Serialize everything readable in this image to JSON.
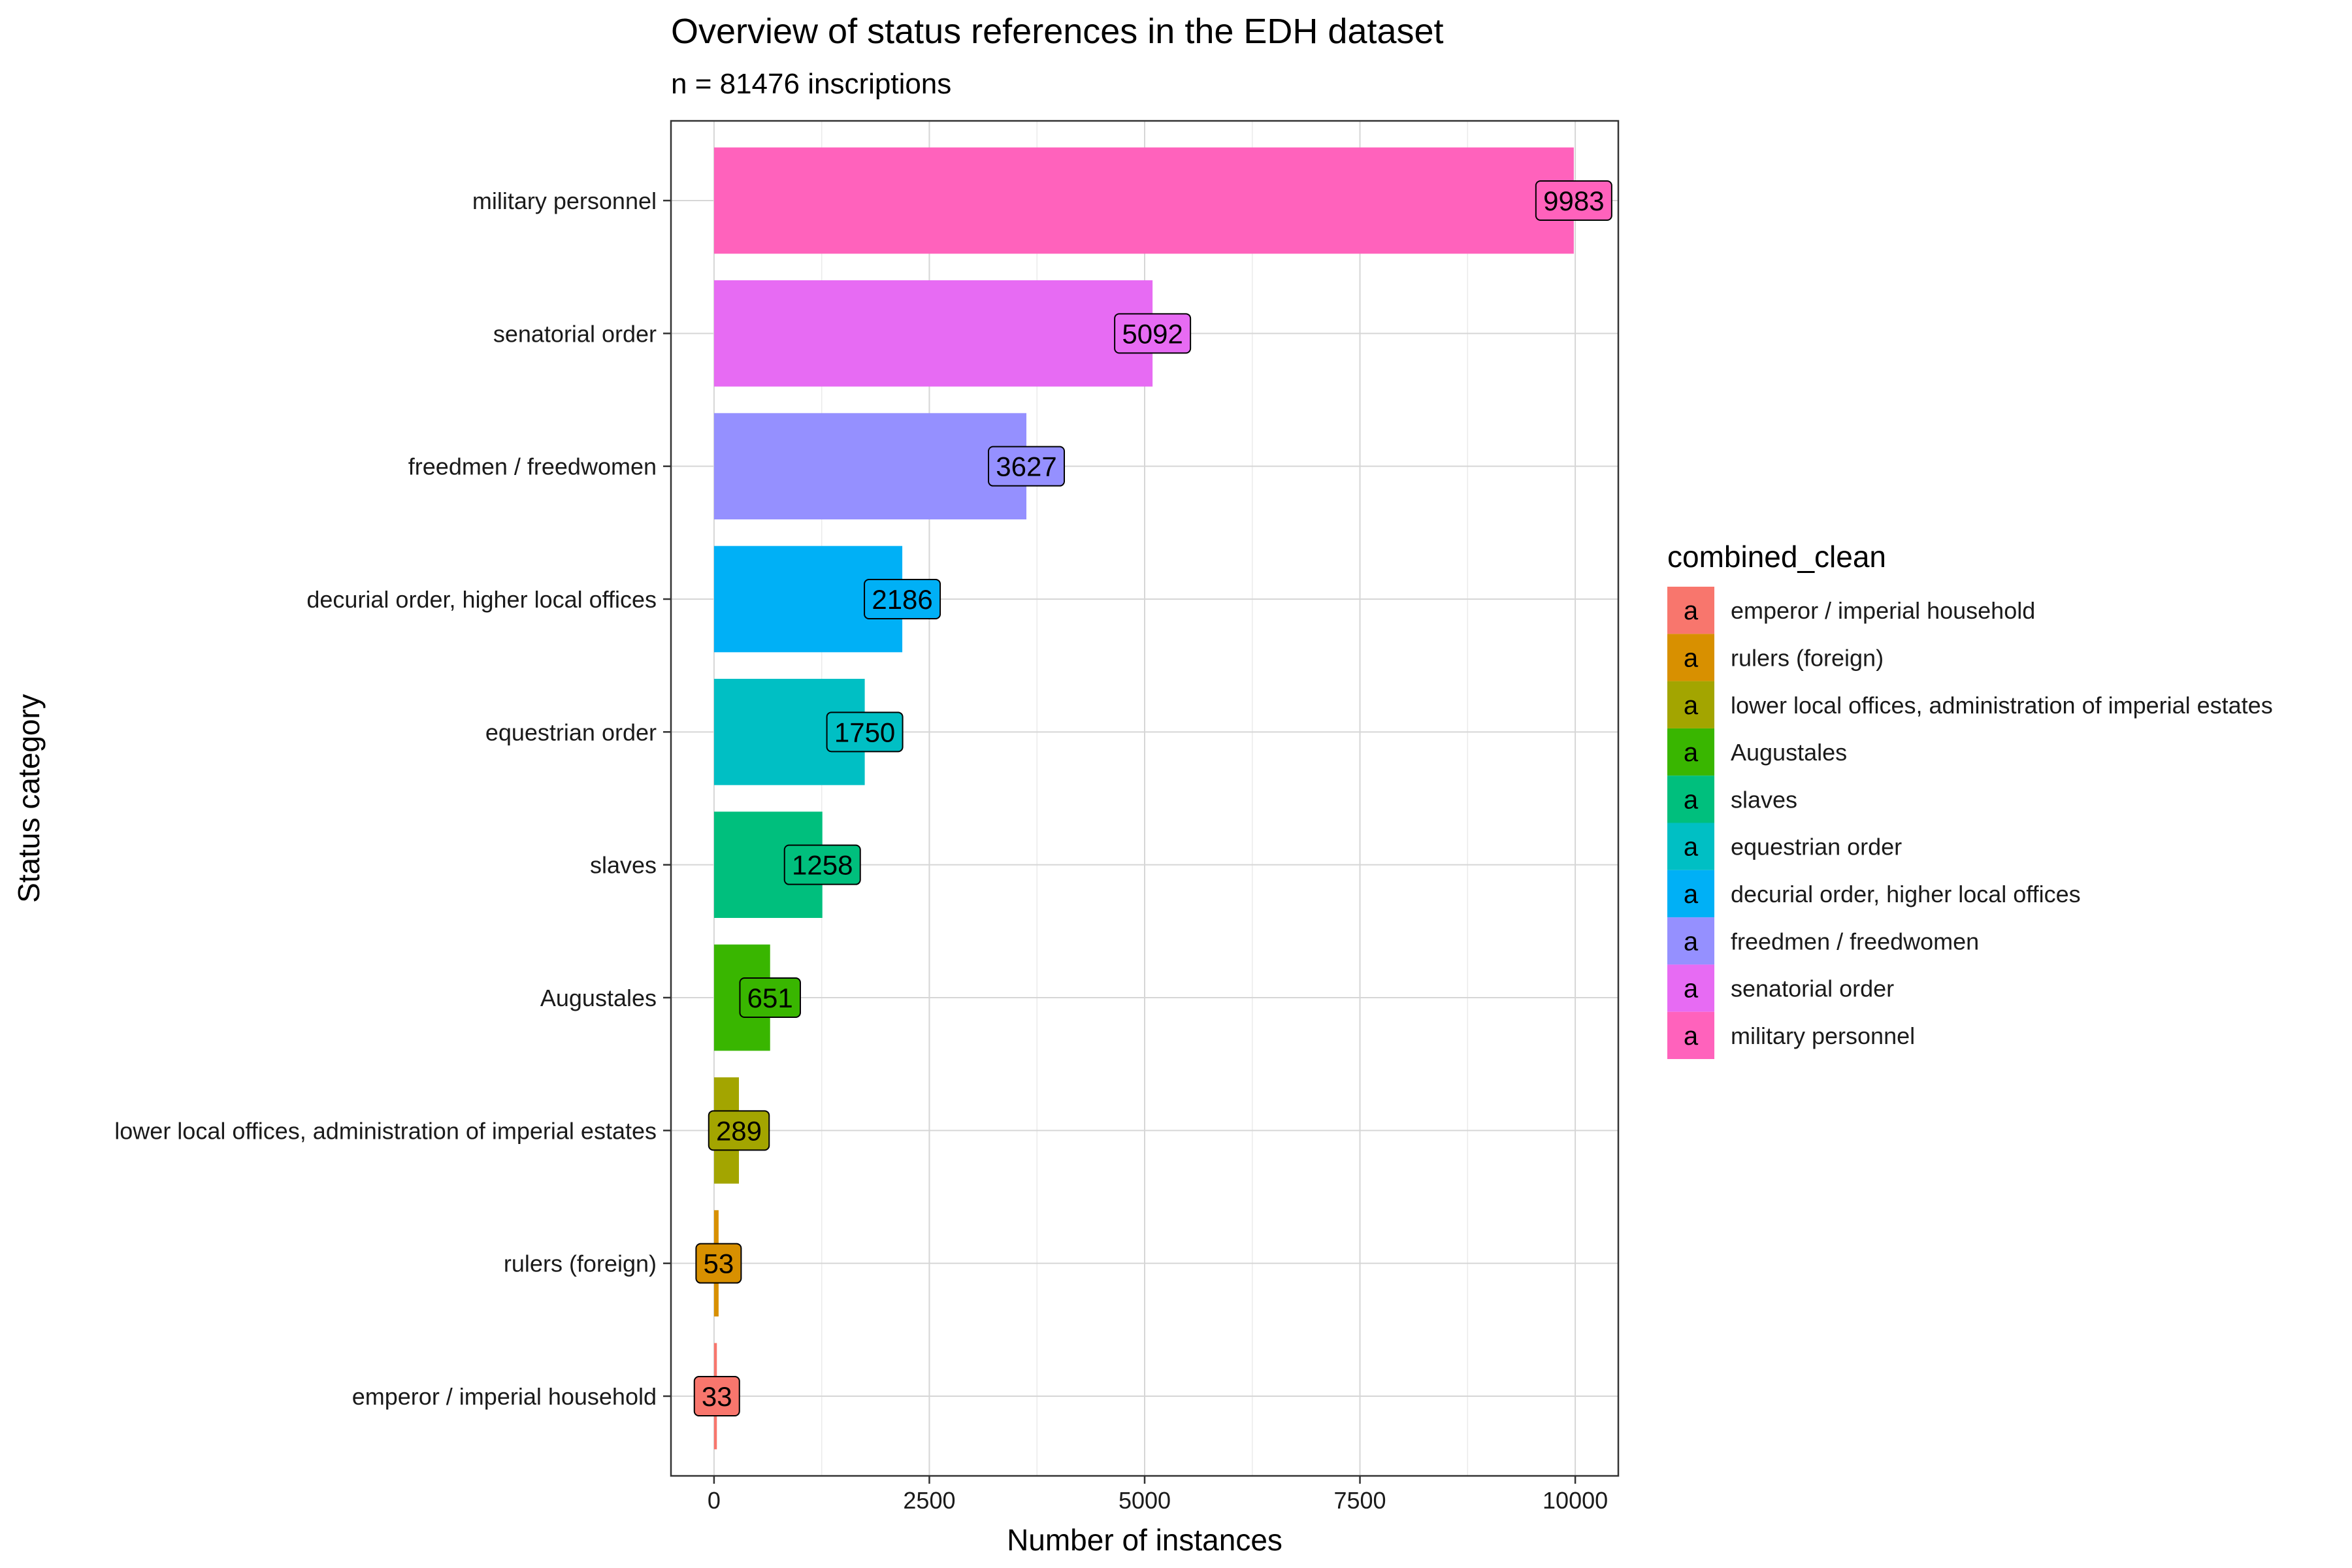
{
  "chart_data": {
    "type": "bar",
    "orientation": "horizontal",
    "title": "Overview of status references in the EDH dataset",
    "subtitle": "n = 81476 inscriptions",
    "xlabel": "Number of instances",
    "ylabel": "Status category",
    "xlim": [
      -500,
      10500
    ],
    "x_ticks": [
      0,
      2500,
      5000,
      7500,
      10000
    ],
    "x_tick_labels": [
      "0",
      "2500",
      "5000",
      "7500",
      "10000"
    ],
    "grid": true,
    "categories": [
      "emperor / imperial household",
      "rulers (foreign)",
      "lower local offices, administration of imperial estates",
      "Augustales",
      "slaves",
      "equestrian order",
      "decurial order, higher local offices",
      "freedmen / freedwomen",
      "senatorial order",
      "military personnel"
    ],
    "values": [
      33,
      53,
      289,
      651,
      1258,
      1750,
      2186,
      3627,
      5092,
      9983
    ],
    "colors": [
      "#F8766D",
      "#D89000",
      "#A3A500",
      "#39B600",
      "#00BF7D",
      "#00BFC4",
      "#00B0F6",
      "#9590FF",
      "#E76BF3",
      "#FF62BC"
    ],
    "legend": {
      "title": "combined_clean",
      "placement": "right",
      "key_glyph": "a",
      "entries": [
        "emperor / imperial household",
        "rulers (foreign)",
        "lower local offices, administration of imperial estates",
        "Augustales",
        "slaves",
        "equestrian order",
        "decurial order, higher local offices",
        "freedmen / freedwomen",
        "senatorial order",
        "military personnel"
      ]
    }
  }
}
